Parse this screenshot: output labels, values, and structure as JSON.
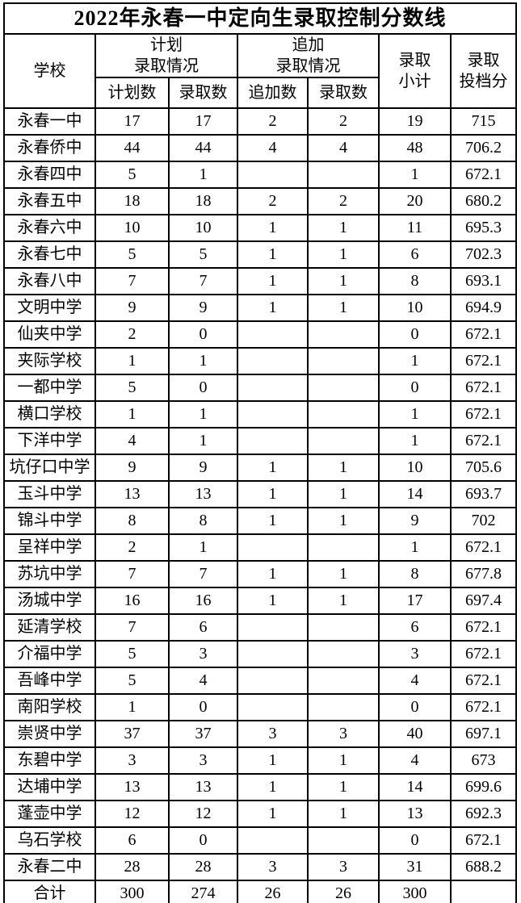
{
  "title": "2022年永春一中定向生录取控制分数线",
  "colors": {
    "background": "#ffffff",
    "border": "#000000",
    "text": "#000000"
  },
  "table": {
    "headers": {
      "school": "学校",
      "planned_group": {
        "line1": "计划",
        "line2": "录取情况"
      },
      "added_group": {
        "line1": "追加",
        "line2": "录取情况"
      },
      "sub": {
        "planned": "计划数",
        "admitted": "录取数",
        "added": "追加数",
        "added_admitted": "录取数"
      },
      "subtotal": {
        "line1": "录取",
        "line2": "小计"
      },
      "score": {
        "line1": "录取",
        "line2": "投档分"
      }
    },
    "rows": [
      {
        "school": "永春一中",
        "planned": "17",
        "admitted": "17",
        "added": "2",
        "added_admitted": "2",
        "subtotal": "19",
        "score": "715"
      },
      {
        "school": "永春侨中",
        "planned": "44",
        "admitted": "44",
        "added": "4",
        "added_admitted": "4",
        "subtotal": "48",
        "score": "706.2"
      },
      {
        "school": "永春四中",
        "planned": "5",
        "admitted": "1",
        "added": "",
        "added_admitted": "",
        "subtotal": "1",
        "score": "672.1"
      },
      {
        "school": "永春五中",
        "planned": "18",
        "admitted": "18",
        "added": "2",
        "added_admitted": "2",
        "subtotal": "20",
        "score": "680.2"
      },
      {
        "school": "永春六中",
        "planned": "10",
        "admitted": "10",
        "added": "1",
        "added_admitted": "1",
        "subtotal": "11",
        "score": "695.3"
      },
      {
        "school": "永春七中",
        "planned": "5",
        "admitted": "5",
        "added": "1",
        "added_admitted": "1",
        "subtotal": "6",
        "score": "702.3"
      },
      {
        "school": "永春八中",
        "planned": "7",
        "admitted": "7",
        "added": "1",
        "added_admitted": "1",
        "subtotal": "8",
        "score": "693.1"
      },
      {
        "school": "文明中学",
        "planned": "9",
        "admitted": "9",
        "added": "1",
        "added_admitted": "1",
        "subtotal": "10",
        "score": "694.9"
      },
      {
        "school": "仙夹中学",
        "planned": "2",
        "admitted": "0",
        "added": "",
        "added_admitted": "",
        "subtotal": "0",
        "score": "672.1"
      },
      {
        "school": "夹际学校",
        "planned": "1",
        "admitted": "1",
        "added": "",
        "added_admitted": "",
        "subtotal": "1",
        "score": "672.1"
      },
      {
        "school": "一都中学",
        "planned": "5",
        "admitted": "0",
        "added": "",
        "added_admitted": "",
        "subtotal": "0",
        "score": "672.1"
      },
      {
        "school": "横口学校",
        "planned": "1",
        "admitted": "1",
        "added": "",
        "added_admitted": "",
        "subtotal": "1",
        "score": "672.1"
      },
      {
        "school": "下洋中学",
        "planned": "4",
        "admitted": "1",
        "added": "",
        "added_admitted": "",
        "subtotal": "1",
        "score": "672.1"
      },
      {
        "school": "坑仔口中学",
        "planned": "9",
        "admitted": "9",
        "added": "1",
        "added_admitted": "1",
        "subtotal": "10",
        "score": "705.6"
      },
      {
        "school": "玉斗中学",
        "planned": "13",
        "admitted": "13",
        "added": "1",
        "added_admitted": "1",
        "subtotal": "14",
        "score": "693.7"
      },
      {
        "school": "锦斗中学",
        "planned": "8",
        "admitted": "8",
        "added": "1",
        "added_admitted": "1",
        "subtotal": "9",
        "score": "702"
      },
      {
        "school": "呈祥中学",
        "planned": "2",
        "admitted": "1",
        "added": "",
        "added_admitted": "",
        "subtotal": "1",
        "score": "672.1"
      },
      {
        "school": "苏坑中学",
        "planned": "7",
        "admitted": "7",
        "added": "1",
        "added_admitted": "1",
        "subtotal": "8",
        "score": "677.8"
      },
      {
        "school": "汤城中学",
        "planned": "16",
        "admitted": "16",
        "added": "1",
        "added_admitted": "1",
        "subtotal": "17",
        "score": "697.4"
      },
      {
        "school": "延清学校",
        "planned": "7",
        "admitted": "6",
        "added": "",
        "added_admitted": "",
        "subtotal": "6",
        "score": "672.1"
      },
      {
        "school": "介福中学",
        "planned": "5",
        "admitted": "3",
        "added": "",
        "added_admitted": "",
        "subtotal": "3",
        "score": "672.1"
      },
      {
        "school": "吾峰中学",
        "planned": "5",
        "admitted": "4",
        "added": "",
        "added_admitted": "",
        "subtotal": "4",
        "score": "672.1"
      },
      {
        "school": "南阳学校",
        "planned": "1",
        "admitted": "0",
        "added": "",
        "added_admitted": "",
        "subtotal": "0",
        "score": "672.1"
      },
      {
        "school": "崇贤中学",
        "planned": "37",
        "admitted": "37",
        "added": "3",
        "added_admitted": "3",
        "subtotal": "40",
        "score": "697.1"
      },
      {
        "school": "东碧中学",
        "planned": "3",
        "admitted": "3",
        "added": "1",
        "added_admitted": "1",
        "subtotal": "4",
        "score": "673"
      },
      {
        "school": "达埔中学",
        "planned": "13",
        "admitted": "13",
        "added": "1",
        "added_admitted": "1",
        "subtotal": "14",
        "score": "699.6"
      },
      {
        "school": "蓬壶中学",
        "planned": "12",
        "admitted": "12",
        "added": "1",
        "added_admitted": "1",
        "subtotal": "13",
        "score": "692.3"
      },
      {
        "school": "乌石学校",
        "planned": "6",
        "admitted": "0",
        "added": "",
        "added_admitted": "",
        "subtotal": "0",
        "score": "672.1"
      },
      {
        "school": "永春二中",
        "planned": "28",
        "admitted": "28",
        "added": "3",
        "added_admitted": "3",
        "subtotal": "31",
        "score": "688.2"
      }
    ],
    "total_row": {
      "school": "合计",
      "planned": "300",
      "admitted": "274",
      "added": "26",
      "added_admitted": "26",
      "subtotal": "300",
      "score": ""
    }
  }
}
